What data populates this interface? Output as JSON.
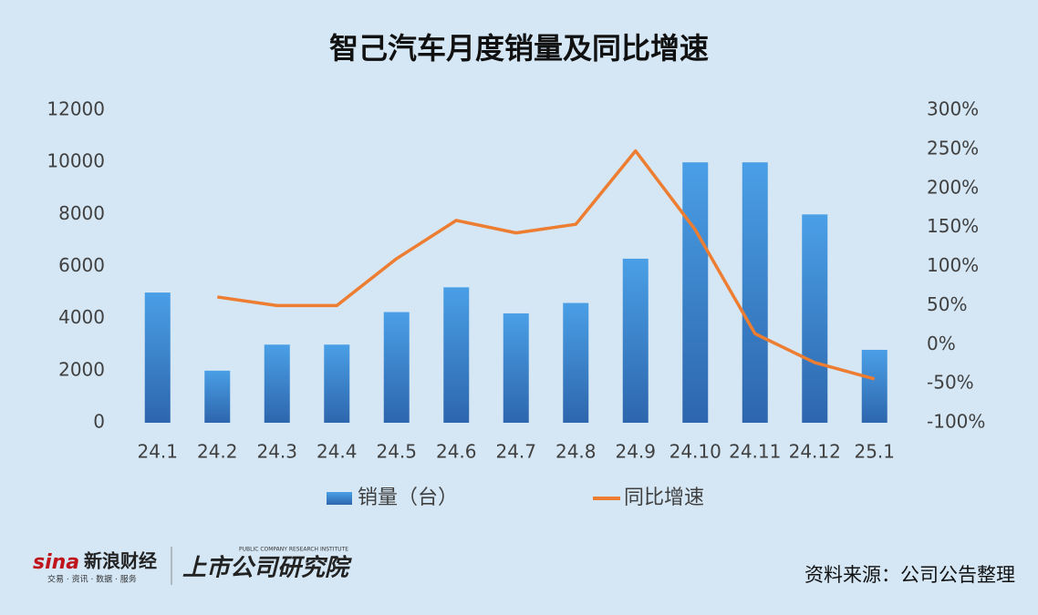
{
  "chart_data": {
    "type": "bar-line",
    "title": "智己汽车月度销量及同比增速",
    "categories": [
      "24.1",
      "24.2",
      "24.3",
      "24.4",
      "24.5",
      "24.6",
      "24.7",
      "24.8",
      "24.9",
      "24.10",
      "24.11",
      "24.12",
      "25.1"
    ],
    "series": [
      {
        "name": "销量（台）",
        "color": "#3a8ad8",
        "values": [
          5000,
          2000,
          3000,
          3000,
          4250,
          5200,
          4200,
          4600,
          6300,
          10000,
          10000,
          8000,
          2800
        ]
      },
      {
        "name": "同比增速",
        "color": "#ed7d31",
        "axis": "y2",
        "values": [
          null,
          61,
          50,
          50,
          110,
          159,
          143,
          154,
          248,
          147,
          14,
          -23,
          -44
        ]
      }
    ],
    "ylim": [
      0,
      12000
    ],
    "yticks": [
      0,
      2000,
      4000,
      6000,
      8000,
      10000,
      12000
    ],
    "y2lim": [
      -100,
      300
    ],
    "y2ticks": [
      {
        "value": -100,
        "label": "-100%"
      },
      {
        "value": -50,
        "label": "-50%"
      },
      {
        "value": 0,
        "label": "0%"
      },
      {
        "value": 50,
        "label": "50%"
      },
      {
        "value": 100,
        "label": "100%"
      },
      {
        "value": 150,
        "label": "150%"
      },
      {
        "value": 200,
        "label": "200%"
      },
      {
        "value": 250,
        "label": "250%"
      },
      {
        "value": 300,
        "label": "300%"
      }
    ],
    "grid": false
  },
  "footer": {
    "brand": "新浪财经",
    "brand_sub": "交易 · 资讯 · 数据 · 服务",
    "institute": "上市公司研究院",
    "institute_sub": "PUBLIC COMPANY RESEARCH INSTITUTE",
    "source": "资料来源：公司公告整理"
  }
}
